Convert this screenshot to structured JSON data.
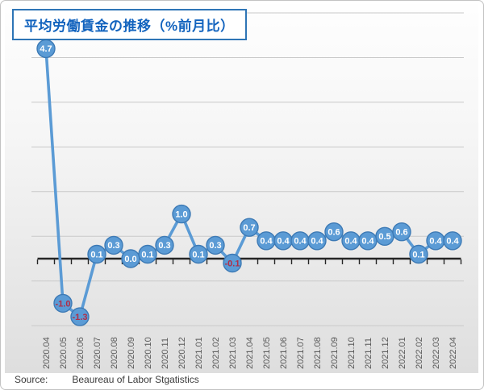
{
  "title": "平均労働賃金の推移（%前月比）",
  "source": {
    "label": "Source:",
    "text": "Beaureau of Labor Stgatistics"
  },
  "chart_data": {
    "type": "line",
    "title": "平均労働賃金の推移（%前月比）",
    "categories": [
      "2020.04",
      "2020.05",
      "2020.06",
      "2020.07",
      "2020.08",
      "2020.09",
      "2020.10",
      "2020.11",
      "2020.12",
      "2021.01",
      "2021.02",
      "2021.03",
      "2021.04",
      "2021.05",
      "2021.06",
      "2021.07",
      "2021.08",
      "2021.09",
      "2021.10",
      "2021.11",
      "2021.12",
      "2022.01",
      "2022.02",
      "2022.03",
      "2022.04"
    ],
    "values": [
      4.7,
      -1.0,
      -1.3,
      0.1,
      0.3,
      0.0,
      0.1,
      0.3,
      1.0,
      0.1,
      0.3,
      -0.1,
      0.7,
      0.4,
      0.4,
      0.4,
      0.4,
      0.6,
      0.4,
      0.4,
      0.5,
      0.6,
      0.1,
      0.4,
      0.4
    ],
    "data_labels": true,
    "label_format": "0.0",
    "xlabel": "",
    "ylabel": "",
    "ylim": [
      -1.5,
      5.5
    ],
    "gridline_values": [
      5.5,
      4.5,
      3.5,
      2.5,
      1.5,
      0.5,
      -0.5,
      -1.5
    ],
    "grid": true,
    "legend": "none",
    "colors": {
      "marker_fill": "#5B9BD5",
      "marker_border": "#3D7AB5",
      "line": "#5B9BD5",
      "label_positive": "#FFFFFF",
      "label_negative": "#B02E46",
      "axis": "#262626",
      "gridline": "#C9C9C9",
      "tick_label": "#595959",
      "title_text": "#1263BE",
      "title_border": "#2E75B6"
    }
  }
}
